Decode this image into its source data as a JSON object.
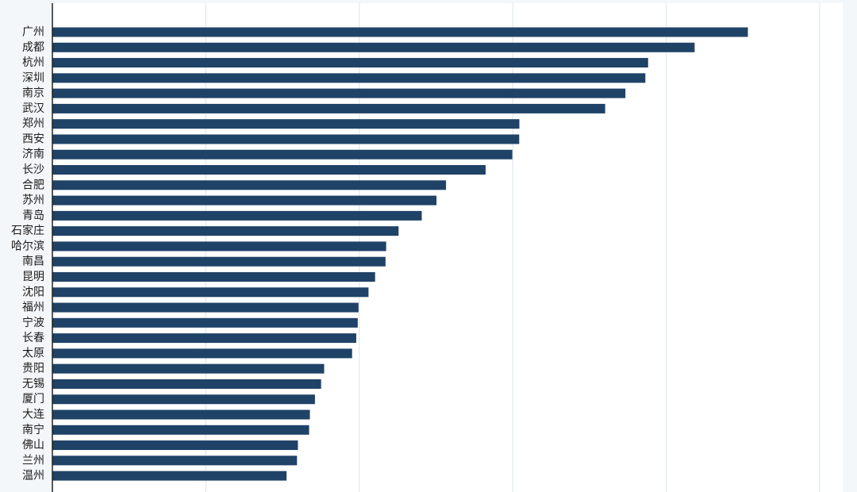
{
  "chart_data": {
    "type": "bar",
    "orientation": "horizontal",
    "categories": [
      "广州",
      "成都",
      "杭州",
      "深圳",
      "南京",
      "武汉",
      "郑州",
      "西安",
      "济南",
      "长沙",
      "合肥",
      "苏州",
      "青岛",
      "石家庄",
      "哈尔滨",
      "南昌",
      "昆明",
      "沈阳",
      "福州",
      "宁波",
      "长春",
      "太原",
      "贵阳",
      "无锡",
      "厦门",
      "大连",
      "南宁",
      "佛山",
      "兰州",
      "温州"
    ],
    "values": [
      453.2,
      418.5,
      388.2,
      386.4,
      373.4,
      360.2,
      304.3,
      304.2,
      299.7,
      282.3,
      256.5,
      250.3,
      240.7,
      225.6,
      217.5,
      217.1,
      210.3,
      206.0,
      199.5,
      199.0,
      198.0,
      195.3,
      177.1,
      175.1,
      171.1,
      167.8,
      167.3,
      160.0,
      159.4,
      152.6
    ],
    "xlim": [
      0,
      515
    ],
    "grid": true,
    "bar_color": "#1f4267",
    "background_color": "#f4f7f9",
    "plot_background_color": "#ffffff",
    "gridline_color": "#dfe8ef"
  }
}
